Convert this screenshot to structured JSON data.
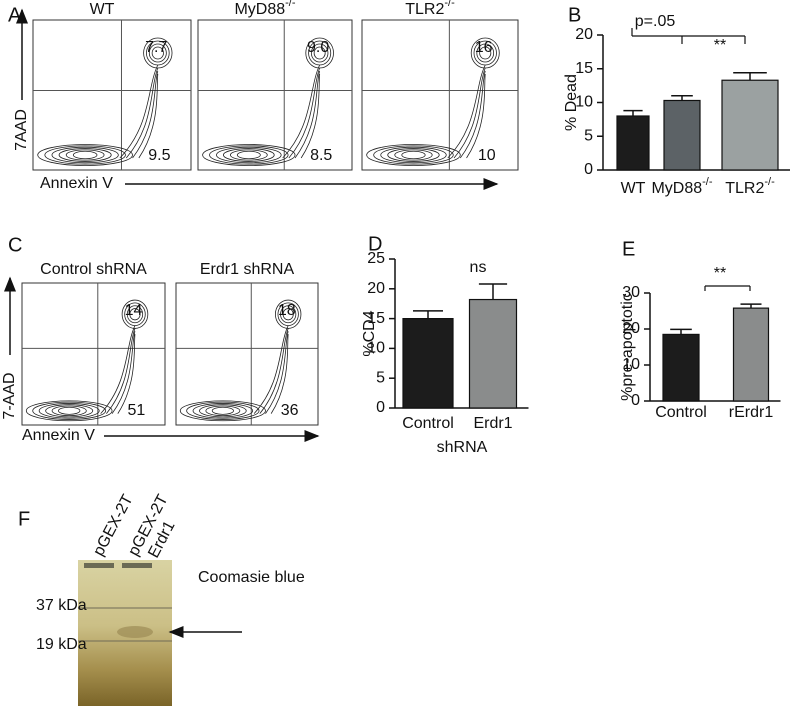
{
  "panel_a": {
    "label": "A",
    "y_label": "7AAD",
    "x_label": "Annexin V",
    "plots": [
      {
        "title": {
          "base": "WT",
          "sup": ""
        },
        "upper_right": "7.7",
        "lower_right": "9.5"
      },
      {
        "title": {
          "base": "MyD88",
          "sup": "-/-"
        },
        "upper_right": "9.0",
        "lower_right": "8.5"
      },
      {
        "title": {
          "base": "TLR2",
          "sup": "-/-"
        },
        "upper_right": "16",
        "lower_right": "10"
      }
    ]
  },
  "panel_c": {
    "label": "C",
    "y_label": "7-AAD",
    "x_label": "Annexin V",
    "plots": [
      {
        "title": "Control shRNA",
        "upper_right": "14",
        "lower_right": "51"
      },
      {
        "title": "Erdr1 shRNA",
        "upper_right": "18",
        "lower_right": "36"
      }
    ]
  },
  "panel_f": {
    "label": "F",
    "lanes": [
      "pGEX-2T",
      "pGEX-2T",
      "Erdr1"
    ],
    "stain": "Coomasie blue",
    "markers": [
      "37 kDa",
      "19 kDa"
    ]
  },
  "chart_data": [
    {
      "type": "bar",
      "panel_label": "B",
      "ylabel": "% Dead",
      "categories": [
        "WT",
        "MyD88",
        "TLR2"
      ],
      "category_sups": [
        null,
        "-/-",
        "-/-"
      ],
      "values": [
        8,
        10.3,
        13.3
      ],
      "errors": [
        0.8,
        0.7,
        1.1
      ],
      "colors": [
        "#1c1c1c",
        "#5c6266",
        "#9ba1a1"
      ],
      "ylim": [
        0,
        20
      ],
      "yticks": [
        0,
        5,
        10,
        15,
        20
      ],
      "annotations": [
        "p=.05",
        "**"
      ]
    },
    {
      "type": "bar",
      "panel_label": "D",
      "ylabel": "%CD4",
      "xlabel": "shRNA",
      "categories": [
        "Control",
        "Erdr1"
      ],
      "category_sups": [
        null,
        null
      ],
      "values": [
        15,
        18.2
      ],
      "errors": [
        1.3,
        2.6
      ],
      "colors": [
        "#1c1c1c",
        "#8a8c8c"
      ],
      "ylim": [
        0,
        25
      ],
      "yticks": [
        0,
        5,
        10,
        15,
        20,
        25
      ],
      "annotations": [
        "ns"
      ]
    },
    {
      "type": "bar",
      "panel_label": "E",
      "ylabel": "%pre-apoptotic",
      "categories": [
        "Control",
        "rErdr1"
      ],
      "category_sups": [
        null,
        null
      ],
      "values": [
        18.5,
        25.8
      ],
      "errors": [
        1.4,
        1.1
      ],
      "colors": [
        "#1c1c1c",
        "#8a8c8c"
      ],
      "ylim": [
        0,
        30
      ],
      "yticks": [
        0,
        10,
        20,
        30
      ],
      "annotations": [
        "**"
      ]
    }
  ]
}
